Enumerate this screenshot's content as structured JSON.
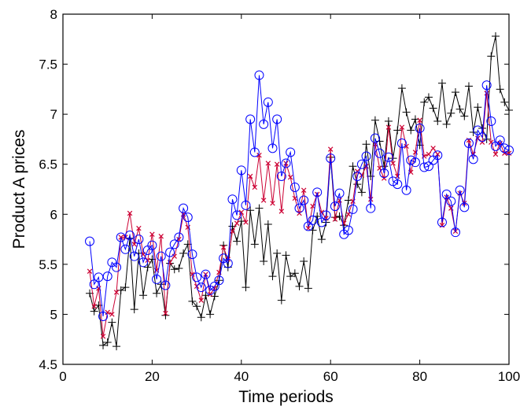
{
  "chart_data": {
    "type": "line",
    "title": "",
    "xlabel": "Time periods",
    "ylabel": "Product A prices",
    "xlim": [
      0,
      100
    ],
    "ylim": [
      4.5,
      8
    ],
    "grid": false,
    "legend": "none",
    "x_ticks": [
      0,
      20,
      40,
      60,
      80,
      100
    ],
    "y_ticks": [
      4.5,
      5,
      5.5,
      6,
      6.5,
      7,
      7.5,
      8
    ],
    "x_tick_labels": [
      "0",
      "20",
      "40",
      "60",
      "80",
      "100"
    ],
    "y_tick_labels": [
      "4.5",
      "5",
      "5.5",
      "6",
      "6.5",
      "7",
      "7.5",
      "8"
    ],
    "x": [
      6,
      7,
      8,
      9,
      10,
      11,
      12,
      13,
      14,
      15,
      16,
      17,
      18,
      19,
      20,
      21,
      22,
      23,
      24,
      25,
      26,
      27,
      28,
      29,
      30,
      31,
      32,
      33,
      34,
      35,
      36,
      37,
      38,
      39,
      40,
      41,
      42,
      43,
      44,
      45,
      46,
      47,
      48,
      49,
      50,
      51,
      52,
      53,
      54,
      55,
      56,
      57,
      58,
      59,
      60,
      61,
      62,
      63,
      64,
      65,
      66,
      67,
      68,
      69,
      70,
      71,
      72,
      73,
      74,
      75,
      76,
      77,
      78,
      79,
      80,
      81,
      82,
      83,
      84,
      85,
      86,
      87,
      88,
      89,
      90,
      91,
      92,
      93,
      94,
      95,
      96,
      97,
      98,
      99,
      100
    ],
    "series": [
      {
        "color": "#0000ff",
        "marker": "circle",
        "values": [
          5.73,
          5.3,
          5.37,
          4.98,
          5.38,
          5.52,
          5.47,
          5.77,
          5.65,
          5.79,
          5.58,
          5.75,
          5.52,
          5.64,
          5.69,
          5.35,
          5.58,
          5.29,
          5.62,
          5.7,
          5.77,
          6.06,
          5.97,
          5.6,
          5.37,
          5.27,
          5.4,
          5.24,
          5.28,
          5.34,
          5.56,
          5.51,
          6.15,
          5.99,
          6.44,
          6.09,
          6.95,
          6.62,
          7.39,
          6.9,
          7.12,
          6.66,
          6.95,
          6.38,
          6.51,
          6.62,
          6.27,
          6.06,
          6.14,
          5.88,
          5.94,
          6.22,
          5.92,
          5.99,
          6.56,
          6.08,
          6.21,
          5.8,
          5.84,
          6.05,
          6.38,
          6.5,
          6.58,
          6.06,
          6.76,
          6.61,
          6.41,
          6.57,
          6.33,
          6.3,
          6.71,
          6.24,
          6.54,
          6.52,
          6.86,
          6.47,
          6.48,
          6.54,
          6.59,
          5.92,
          6.2,
          6.13,
          5.82,
          6.24,
          6.07,
          6.71,
          6.55,
          6.84,
          6.77,
          7.29,
          6.93,
          6.68,
          6.74,
          6.66,
          6.64
        ]
      },
      {
        "color": "#cc0033",
        "marker": "x",
        "values": [
          5.43,
          5.08,
          5.26,
          4.78,
          5.02,
          5.0,
          5.22,
          5.77,
          5.77,
          6.01,
          5.7,
          5.86,
          5.6,
          5.54,
          5.8,
          5.44,
          5.78,
          5.01,
          5.52,
          5.58,
          5.75,
          6.0,
          5.87,
          5.4,
          5.28,
          5.14,
          5.4,
          5.2,
          5.26,
          5.42,
          5.67,
          5.55,
          5.83,
          5.91,
          6.02,
          5.92,
          6.38,
          6.27,
          6.59,
          6.14,
          6.51,
          6.11,
          6.5,
          6.03,
          6.51,
          6.37,
          6.16,
          6.01,
          6.24,
          5.86,
          6.08,
          6.2,
          6.02,
          5.96,
          6.65,
          5.95,
          6.14,
          5.91,
          6.0,
          6.13,
          6.43,
          6.39,
          6.48,
          6.15,
          6.7,
          6.46,
          6.36,
          6.87,
          6.51,
          6.38,
          6.87,
          6.68,
          6.42,
          6.62,
          6.94,
          6.58,
          6.6,
          6.66,
          6.6,
          5.89,
          6.17,
          6.06,
          5.83,
          6.21,
          6.11,
          6.74,
          6.6,
          6.76,
          6.72,
          7.21,
          6.72,
          6.6,
          6.71,
          6.61,
          6.61
        ]
      },
      {
        "color": "#000000",
        "marker": "plus",
        "values": [
          5.21,
          5.03,
          5.09,
          4.69,
          4.72,
          4.92,
          4.68,
          5.24,
          5.27,
          5.76,
          5.05,
          5.61,
          5.19,
          5.47,
          5.55,
          5.21,
          5.3,
          4.99,
          5.51,
          5.45,
          5.46,
          5.61,
          5.7,
          5.13,
          5.08,
          4.97,
          5.19,
          5.0,
          5.18,
          5.34,
          5.69,
          5.47,
          5.88,
          5.73,
          5.93,
          5.27,
          6.04,
          5.7,
          6.06,
          5.53,
          5.9,
          5.38,
          5.61,
          5.14,
          5.59,
          5.38,
          5.41,
          5.28,
          5.53,
          5.26,
          5.84,
          5.98,
          5.75,
          5.92,
          6.57,
          5.97,
          5.98,
          5.89,
          6.14,
          6.48,
          6.3,
          6.22,
          6.7,
          6.38,
          6.94,
          6.73,
          6.48,
          6.93,
          6.56,
          6.84,
          7.26,
          7.02,
          6.84,
          6.95,
          6.69,
          7.12,
          7.17,
          7.06,
          6.93,
          7.31,
          6.9,
          7.01,
          7.22,
          7.05,
          6.98,
          7.28,
          6.82,
          7.07,
          6.86,
          6.75,
          7.58,
          7.78,
          7.25,
          7.12,
          7.04
        ]
      }
    ]
  }
}
